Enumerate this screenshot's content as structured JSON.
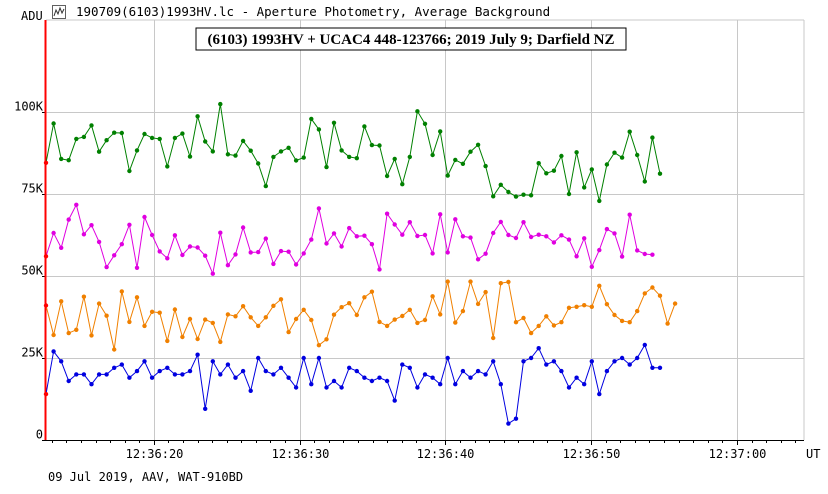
{
  "window": {
    "title": "190709(6103)1993HV.lc - Aperture Photometry, Average Background",
    "icon": "chart-icon"
  },
  "footer": {
    "text": "09 Jul 2019, AAV, WAT-910BD"
  },
  "colors": {
    "background": "#ffffff",
    "axis_left": "#ff0000",
    "axis": "#000000",
    "grid": "#c8c8c8",
    "series1": "#008000",
    "series2": "#e000e0",
    "series3": "#f08000",
    "series4": "#0000e0"
  },
  "chart_data": {
    "type": "line",
    "title": "(6103) 1993HV + UCAC4 448-123766; 2019 July 9;  Darfield NZ",
    "xlabel": "UT",
    "ylabel": "ADU",
    "x_range": [
      "12:36:12.6",
      "12:37:04.6"
    ],
    "ylim": [
      0,
      125000
    ],
    "grid": true,
    "legend": "none",
    "x_ticks": [
      {
        "time": "12:36:20",
        "label": "12:36:20"
      },
      {
        "time": "12:36:30",
        "label": "12:36:30"
      },
      {
        "time": "12:36:40",
        "label": "12:36:40"
      },
      {
        "time": "12:36:50",
        "label": "12:36:50"
      },
      {
        "time": "12:37:00",
        "label": "12:37:00"
      }
    ],
    "y_ticks": [
      {
        "value": 0,
        "label": "0"
      },
      {
        "value": 25000,
        "label": "25K"
      },
      {
        "value": 50000,
        "label": "50K"
      },
      {
        "value": 75000,
        "label": "75K"
      },
      {
        "value": 100000,
        "label": "100K"
      }
    ],
    "x_start": "12:36:12.6",
    "x_step_seconds": 0.52,
    "series": [
      {
        "color": "#008000",
        "values": [
          84500,
          96500,
          85700,
          85300,
          91800,
          92400,
          95900,
          87900,
          91400,
          93700,
          93600,
          82000,
          88300,
          93300,
          92100,
          91800,
          83400,
          92100,
          93400,
          86400,
          98700,
          91000,
          88000,
          102400,
          87100,
          86700,
          91200,
          88200,
          84300,
          77400,
          86300,
          88000,
          89100,
          85200,
          86100,
          97900,
          94700,
          83200,
          96700,
          88300,
          86300,
          85900,
          95600,
          89900,
          89800,
          80500,
          85700,
          78000,
          86300,
          100200,
          96400,
          86900,
          94100,
          80600,
          85400,
          84200,
          87900,
          90000,
          83500,
          74300,
          77800,
          75600,
          74200,
          74800,
          74600,
          84400,
          81300,
          82100,
          86600,
          75000,
          87700,
          77000,
          82500,
          72900,
          84000,
          87600,
          86100,
          94000,
          86900,
          78800,
          92200,
          81200
        ]
      },
      {
        "color": "#e000e0",
        "values": [
          56000,
          63100,
          58600,
          67200,
          71700,
          62700,
          65500,
          60400,
          52700,
          56300,
          59700,
          65600,
          52500,
          68000,
          62500,
          57500,
          55400,
          62400,
          56400,
          59000,
          58700,
          56200,
          50700,
          63200,
          53300,
          56600,
          64800,
          57200,
          57300,
          61400,
          53700,
          57600,
          57400,
          53500,
          56900,
          61100,
          70600,
          59900,
          63000,
          59000,
          64600,
          62100,
          62300,
          59700,
          52000,
          69000,
          65700,
          62600,
          66400,
          62200,
          62500,
          56900,
          68800,
          57200,
          67300,
          62100,
          61700,
          55100,
          56800,
          63100,
          66500,
          62500,
          61600,
          66400,
          61900,
          62600,
          62100,
          60200,
          62400,
          61100,
          56000,
          61500,
          52800,
          57900,
          64300,
          63000,
          55900,
          68700,
          57800,
          56700,
          56500
        ]
      },
      {
        "color": "#f08000",
        "values": [
          41000,
          32000,
          42300,
          32600,
          33600,
          43700,
          31900,
          41600,
          37900,
          27600,
          45300,
          36000,
          43500,
          34800,
          39100,
          38800,
          30200,
          39800,
          31400,
          36900,
          30800,
          36700,
          35700,
          29900,
          38300,
          37700,
          40800,
          37400,
          34800,
          37400,
          40900,
          42900,
          32900,
          36900,
          39700,
          36600,
          28900,
          30700,
          38200,
          40500,
          41700,
          38100,
          43500,
          45200,
          36000,
          34800,
          36700,
          37800,
          39700,
          35700,
          36600,
          43800,
          38300,
          48300,
          35800,
          39300,
          48300,
          41500,
          45100,
          31100,
          47800,
          48200,
          35900,
          37200,
          32600,
          34800,
          37700,
          34900,
          35900,
          40300,
          40600,
          41100,
          40600,
          47000,
          41400,
          38100,
          36300,
          35900,
          39300,
          44700,
          46500,
          44000,
          35500,
          41600
        ]
      },
      {
        "color": "#0000e0",
        "values": [
          14000,
          27000,
          24000,
          18000,
          20000,
          20000,
          17000,
          20000,
          20000,
          22000,
          23000,
          19000,
          21000,
          24000,
          19000,
          21000,
          22000,
          20000,
          20000,
          21000,
          26000,
          9500,
          24000,
          20000,
          23000,
          19000,
          21000,
          15000,
          25000,
          21000,
          20000,
          22000,
          19000,
          16000,
          25000,
          17000,
          25000,
          16000,
          18000,
          16000,
          22000,
          21000,
          19000,
          18000,
          19000,
          18000,
          12000,
          23000,
          22000,
          16000,
          20000,
          19000,
          17000,
          25000,
          17000,
          21000,
          19000,
          21000,
          20000,
          24000,
          17000,
          5000,
          6500,
          24000,
          25000,
          28000,
          23000,
          24000,
          21000,
          16000,
          19000,
          17000,
          24000,
          14000,
          21000,
          24000,
          25000,
          23000,
          25000,
          29000,
          22000,
          22000
        ]
      }
    ]
  }
}
